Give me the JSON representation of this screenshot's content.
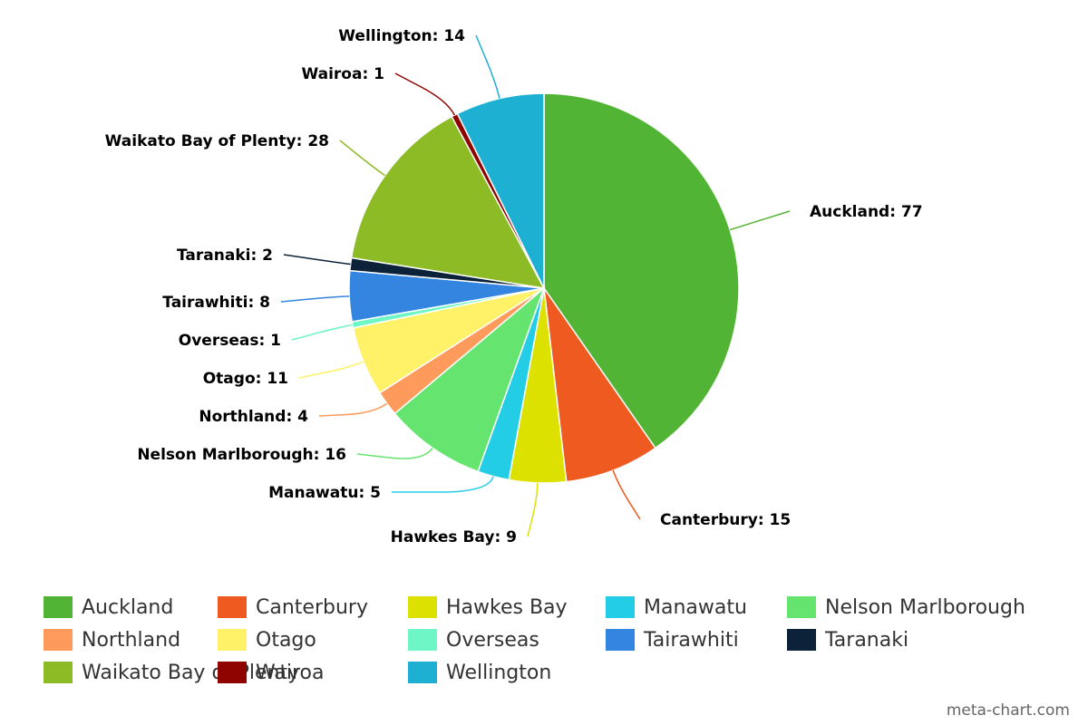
{
  "chart_data": {
    "type": "pie",
    "title": "",
    "slices": [
      {
        "label": "Auckland",
        "value": 77,
        "color": "#52b434"
      },
      {
        "label": "Canterbury",
        "value": 15,
        "color": "#ee5a1f"
      },
      {
        "label": "Hawkes Bay",
        "value": 9,
        "color": "#dde100"
      },
      {
        "label": "Manawatu",
        "value": 5,
        "color": "#24cde6"
      },
      {
        "label": "Nelson Marlborough",
        "value": 16,
        "color": "#65e56f"
      },
      {
        "label": "Northland",
        "value": 4,
        "color": "#fd9a5c"
      },
      {
        "label": "Otago",
        "value": 11,
        "color": "#fff268"
      },
      {
        "label": "Overseas",
        "value": 1,
        "color": "#6ff6c7"
      },
      {
        "label": "Tairawhiti",
        "value": 8,
        "color": "#3385df"
      },
      {
        "label": "Taranaki",
        "value": 2,
        "color": "#0b2238"
      },
      {
        "label": "Waikato Bay of Plenty",
        "value": 28,
        "color": "#8cbb26"
      },
      {
        "label": "Wairoa",
        "value": 1,
        "color": "#8f0300"
      },
      {
        "label": "Wellington",
        "value": 14,
        "color": "#1eb0d3"
      }
    ],
    "legend": {
      "placement": "bottom"
    }
  },
  "credit": "meta-chart.com"
}
